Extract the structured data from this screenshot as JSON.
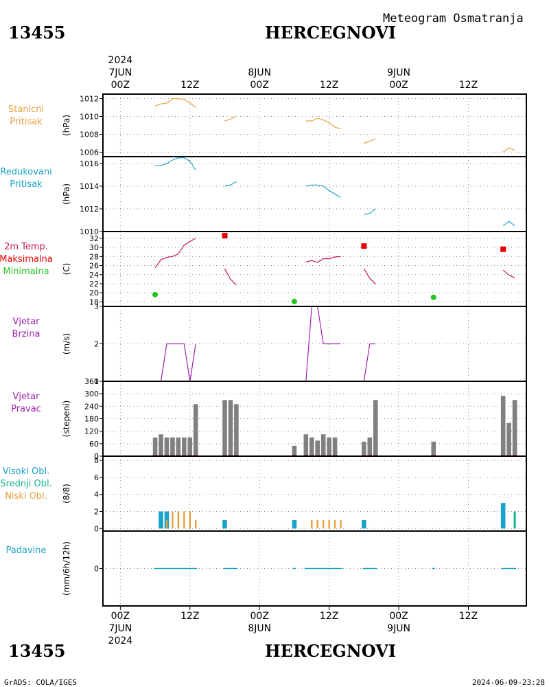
{
  "header": {
    "station_id": "13455",
    "station_name": "HERCEGNOVI",
    "product_title": "Meteogram Osmatranja"
  },
  "time_axis": {
    "labels": [
      {
        "hour": 0,
        "hour_label": "00Z",
        "day_label": "7JUN",
        "year_label": "2024"
      },
      {
        "hour": 12,
        "hour_label": "12Z"
      },
      {
        "hour": 24,
        "hour_label": "00Z",
        "day_label": "8JUN"
      },
      {
        "hour": 36,
        "hour_label": "12Z"
      },
      {
        "hour": 48,
        "hour_label": "00Z",
        "day_label": "9JUN"
      },
      {
        "hour": 60,
        "hour_label": "12Z"
      }
    ],
    "xlim_hours": [
      -3,
      70
    ]
  },
  "panels": [
    {
      "id": "stanicni",
      "labels": [
        {
          "text": "Stanicni",
          "color": "#e6a13c"
        },
        {
          "text": "Pritisak",
          "color": "#e6a13c"
        }
      ],
      "unit": "(hPa)"
    },
    {
      "id": "redukovani",
      "labels": [
        {
          "text": "Redukovani",
          "color": "#1aa3c8"
        },
        {
          "text": "Pritisak",
          "color": "#1aa3c8"
        }
      ],
      "unit": "(hPa)"
    },
    {
      "id": "temp",
      "labels": [
        {
          "text": "2m Temp.",
          "color": "#c0145a"
        },
        {
          "text": "Maksimalna",
          "color": "#e60000"
        },
        {
          "text": "Minimalna",
          "color": "#22c41e"
        }
      ],
      "unit": "(C)"
    },
    {
      "id": "brzina",
      "labels": [
        {
          "text": "Vjetar",
          "color": "#a020b0"
        },
        {
          "text": "Brzina",
          "color": "#a020b0"
        }
      ],
      "unit": "(m/s)"
    },
    {
      "id": "pravac",
      "labels": [
        {
          "text": "Vjetar",
          "color": "#a020b0"
        },
        {
          "text": "Pravac",
          "color": "#a020b0"
        }
      ],
      "unit": "(stepeni)"
    },
    {
      "id": "oblaci",
      "labels": [
        {
          "text": "Visoki Obl.",
          "color": "#1aa3c8"
        },
        {
          "text": "Srednji Obl.",
          "color": "#1ab48c"
        },
        {
          "text": "Niski Obl.",
          "color": "#e6a13c"
        }
      ],
      "unit": "(8/8)"
    },
    {
      "id": "padavine",
      "labels": [
        {
          "text": "Padavine",
          "color": "#1aa3c8"
        }
      ],
      "unit": "(mm/6h/12h)"
    }
  ],
  "footer": {
    "left": "GrADS: COLA/IGES",
    "right": "2024-06-09-23:28"
  },
  "chart_data": {
    "type": "meteogram",
    "x_unit": "hours from 2024-06-07 00Z",
    "stanicni_pritisak": {
      "ylim": [
        1005.5,
        1012.5
      ],
      "yticks": [
        1006,
        1008,
        1010,
        1012
      ],
      "color": "#e6a13c",
      "segments": [
        [
          [
            6,
            1011.2
          ],
          [
            7,
            1011.4
          ],
          [
            8,
            1011.5
          ],
          [
            9,
            1012.0
          ],
          [
            10,
            1012.0
          ],
          [
            11,
            1011.9
          ],
          [
            12,
            1011.5
          ],
          [
            13,
            1011.0
          ]
        ],
        [
          [
            18,
            1009.5
          ],
          [
            19,
            1009.7
          ],
          [
            20,
            1010.0
          ]
        ],
        [
          [
            32,
            1009.5
          ],
          [
            33,
            1009.5
          ],
          [
            34,
            1009.8
          ],
          [
            35,
            1009.6
          ],
          [
            36,
            1009.3
          ],
          [
            37,
            1008.8
          ],
          [
            38,
            1008.6
          ]
        ],
        [
          [
            42,
            1007.0
          ],
          [
            43,
            1007.2
          ],
          [
            44,
            1007.5
          ]
        ],
        [
          [
            66,
            1006.0
          ],
          [
            67,
            1006.5
          ],
          [
            68,
            1006.2
          ]
        ]
      ]
    },
    "redukovani_pritisak": {
      "ylim": [
        1010,
        1016.6
      ],
      "yticks": [
        1010,
        1012,
        1014,
        1016
      ],
      "color": "#1aa3c8",
      "segments": [
        [
          [
            6,
            1015.8
          ],
          [
            7,
            1015.8
          ],
          [
            8,
            1016.0
          ],
          [
            9,
            1016.3
          ],
          [
            10,
            1016.5
          ],
          [
            11,
            1016.5
          ],
          [
            12,
            1016.2
          ],
          [
            13,
            1015.4
          ]
        ],
        [
          [
            18,
            1014.0
          ],
          [
            19,
            1014.1
          ],
          [
            20,
            1014.4
          ]
        ],
        [
          [
            32,
            1014.0
          ],
          [
            33,
            1014.1
          ],
          [
            34,
            1014.1
          ],
          [
            35,
            1014.0
          ],
          [
            36,
            1013.6
          ],
          [
            37,
            1013.3
          ],
          [
            38,
            1013.0
          ]
        ],
        [
          [
            42,
            1011.5
          ],
          [
            43,
            1011.6
          ],
          [
            44,
            1012.0
          ]
        ],
        [
          [
            66,
            1010.5
          ],
          [
            67,
            1010.9
          ],
          [
            68,
            1010.5
          ]
        ]
      ]
    },
    "temperatura": {
      "ylim": [
        17,
        33.5
      ],
      "yticks": [
        18,
        20,
        22,
        24,
        26,
        28,
        30,
        32
      ],
      "color": "#c0145a",
      "segments": [
        [
          [
            6,
            25.5
          ],
          [
            7,
            27.3
          ],
          [
            8,
            27.8
          ],
          [
            9,
            28.0
          ],
          [
            10,
            28.6
          ],
          [
            11,
            30.5
          ],
          [
            12,
            31.3
          ],
          [
            13,
            32.0
          ]
        ],
        [
          [
            18,
            25.3
          ],
          [
            19,
            23.0
          ],
          [
            20,
            21.7
          ]
        ],
        [
          [
            32,
            26.8
          ],
          [
            33,
            27.1
          ],
          [
            34,
            26.7
          ],
          [
            35,
            27.5
          ],
          [
            36,
            27.5
          ],
          [
            37,
            27.9
          ],
          [
            38,
            28.0
          ]
        ],
        [
          [
            42,
            25.3
          ],
          [
            43,
            23.2
          ],
          [
            44,
            21.9
          ]
        ],
        [
          [
            66,
            25.0
          ],
          [
            67,
            23.9
          ],
          [
            68,
            23.3
          ]
        ]
      ],
      "maksimalna": [
        [
          18,
          32.6
        ],
        [
          42,
          30.3
        ],
        [
          66,
          29.6
        ]
      ],
      "minimalna": [
        [
          6,
          19.6
        ],
        [
          30,
          18.1
        ],
        [
          54,
          19.0
        ]
      ]
    },
    "vjetar_brzina": {
      "ylim": [
        1,
        3
      ],
      "yticks": [
        1,
        2,
        3
      ],
      "color": "#a020b0",
      "segments": [
        [
          [
            6,
            1
          ],
          [
            7,
            1
          ],
          [
            8,
            2
          ],
          [
            9,
            2
          ],
          [
            10,
            2
          ],
          [
            11,
            2
          ],
          [
            12,
            1
          ],
          [
            13,
            2
          ]
        ],
        [
          [
            18,
            1
          ],
          [
            19,
            1
          ],
          [
            20,
            1
          ]
        ],
        [
          [
            32,
            1
          ],
          [
            33,
            3
          ],
          [
            34,
            3
          ],
          [
            35,
            2
          ],
          [
            36,
            2
          ],
          [
            37,
            2
          ],
          [
            38,
            2
          ]
        ],
        [
          [
            42,
            1
          ],
          [
            43,
            2
          ],
          [
            44,
            2
          ]
        ],
        [
          [
            66,
            1
          ],
          [
            67,
            1
          ],
          [
            68,
            1
          ]
        ]
      ]
    },
    "vjetar_pravac": {
      "ylim": [
        0,
        360
      ],
      "yticks": [
        0,
        60,
        120,
        180,
        240,
        300,
        360
      ],
      "color": "#808080",
      "bars": [
        [
          6,
          90
        ],
        [
          7,
          105
        ],
        [
          8,
          90
        ],
        [
          9,
          90
        ],
        [
          10,
          90
        ],
        [
          11,
          90
        ],
        [
          12,
          90
        ],
        [
          13,
          250
        ],
        [
          18,
          270
        ],
        [
          19,
          270
        ],
        [
          20,
          250
        ],
        [
          30,
          50
        ],
        [
          32,
          105
        ],
        [
          33,
          90
        ],
        [
          34,
          75
        ],
        [
          35,
          105
        ],
        [
          36,
          90
        ],
        [
          37,
          90
        ],
        [
          42,
          70
        ],
        [
          43,
          90
        ],
        [
          44,
          270
        ],
        [
          54,
          70
        ],
        [
          66,
          290
        ],
        [
          67,
          160
        ],
        [
          68,
          270
        ]
      ]
    },
    "oblaci": {
      "ylim": [
        -0.3,
        8.5
      ],
      "yticks": [
        0,
        2,
        4,
        6,
        8
      ],
      "visoki": {
        "color": "#1aa3c8",
        "bars": [
          [
            7,
            2
          ],
          [
            8,
            2
          ],
          [
            18,
            1
          ],
          [
            30,
            1
          ],
          [
            42,
            1
          ],
          [
            66,
            3
          ]
        ]
      },
      "srednji": {
        "color": "#1ab48c",
        "bars": [
          [
            68,
            2
          ]
        ]
      },
      "niski": {
        "color": "#e6a13c",
        "bars": [
          [
            8,
            1
          ],
          [
            9,
            2
          ],
          [
            10,
            2
          ],
          [
            11,
            2
          ],
          [
            12,
            2
          ],
          [
            13,
            1
          ],
          [
            33,
            1
          ],
          [
            34,
            1
          ],
          [
            35,
            1
          ],
          [
            36,
            1
          ],
          [
            37,
            1
          ],
          [
            38,
            1
          ]
        ]
      }
    },
    "padavine": {
      "ylim": [
        -5,
        5
      ],
      "yticks": [
        0
      ],
      "color": "#1aa3c8",
      "segments": [
        [
          6,
          13
        ],
        [
          18,
          20
        ],
        [
          30,
          30
        ],
        [
          32,
          38
        ],
        [
          42,
          44
        ],
        [
          54,
          54
        ],
        [
          66,
          68
        ]
      ]
    }
  }
}
